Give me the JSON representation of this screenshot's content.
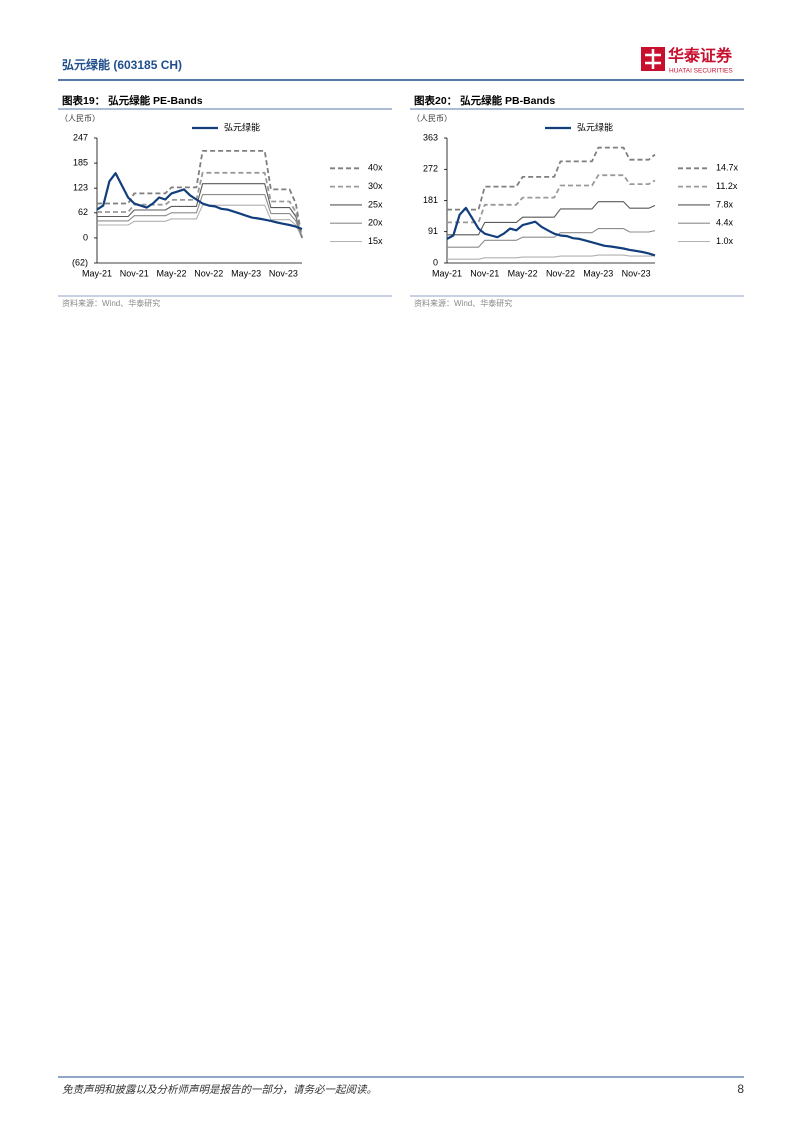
{
  "header": {
    "company": "弘元绿能 (603185 CH)",
    "logo_name": "华泰证券",
    "logo_sub": "HUATAI SECURITIES"
  },
  "chart_data": [
    {
      "type": "line",
      "title": "图表19： 弘元绿能 PE-Bands",
      "unit": "（人民币）",
      "source": "资料来源：Wind、华泰研究",
      "categories": [
        "May-21",
        null,
        null,
        null,
        null,
        null,
        "Nov-21",
        null,
        null,
        null,
        null,
        null,
        "May-22",
        null,
        null,
        null,
        null,
        null,
        "Nov-22",
        null,
        null,
        null,
        null,
        null,
        "May-23",
        null,
        null,
        null,
        null,
        null,
        "Nov-23",
        null,
        null,
        null
      ],
      "ylim": [
        -62,
        247
      ],
      "yticks": [
        {
          "value": -62,
          "label": "(62)"
        },
        0,
        62,
        123,
        185,
        247
      ],
      "series": [
        {
          "name": "弘元绿能",
          "color": "#123e7c",
          "style": "solid",
          "values": [
            70,
            80,
            140,
            160,
            130,
            100,
            85,
            80,
            75,
            85,
            100,
            95,
            110,
            115,
            120,
            105,
            95,
            85,
            80,
            78,
            72,
            70,
            65,
            60,
            55,
            50,
            48,
            45,
            42,
            38,
            35,
            32,
            28,
            22
          ]
        },
        {
          "name": "40x",
          "color": "#7f7f7f",
          "style": "dashed",
          "values": [
            85,
            85,
            85,
            85,
            85,
            85,
            110,
            110,
            110,
            110,
            110,
            110,
            125,
            125,
            125,
            125,
            125,
            215,
            215,
            215,
            215,
            215,
            215,
            215,
            215,
            215,
            215,
            215,
            120,
            120,
            120,
            120,
            85,
            0
          ]
        },
        {
          "name": "30x",
          "color": "#9a9a9a",
          "style": "dashed",
          "values": [
            64,
            64,
            64,
            64,
            64,
            64,
            82,
            82,
            82,
            82,
            82,
            82,
            94,
            94,
            94,
            94,
            94,
            161,
            161,
            161,
            161,
            161,
            161,
            161,
            161,
            161,
            161,
            161,
            90,
            90,
            90,
            90,
            64,
            0
          ]
        },
        {
          "name": "25x",
          "color": "#595959",
          "style": "solid",
          "values": [
            53,
            53,
            53,
            53,
            53,
            53,
            69,
            69,
            69,
            69,
            69,
            69,
            78,
            78,
            78,
            78,
            78,
            134,
            134,
            134,
            134,
            134,
            134,
            134,
            134,
            134,
            134,
            134,
            75,
            75,
            75,
            75,
            53,
            0
          ]
        },
        {
          "name": "20x",
          "color": "#8c8c8c",
          "style": "solid",
          "values": [
            42,
            42,
            42,
            42,
            42,
            42,
            55,
            55,
            55,
            55,
            55,
            55,
            62,
            62,
            62,
            62,
            62,
            107,
            107,
            107,
            107,
            107,
            107,
            107,
            107,
            107,
            107,
            107,
            60,
            60,
            60,
            60,
            42,
            0
          ]
        },
        {
          "name": "15x",
          "color": "#b0b0b0",
          "style": "solid",
          "values": [
            32,
            32,
            32,
            32,
            32,
            32,
            41,
            41,
            41,
            41,
            41,
            41,
            47,
            47,
            47,
            47,
            47,
            81,
            81,
            81,
            81,
            81,
            81,
            81,
            81,
            81,
            81,
            81,
            45,
            45,
            45,
            45,
            32,
            0
          ]
        }
      ]
    },
    {
      "type": "line",
      "title": "图表20： 弘元绿能 PB-Bands",
      "unit": "（人民币）",
      "source": "资料来源：Wind、华泰研究",
      "categories": [
        "May-21",
        null,
        null,
        null,
        null,
        null,
        "Nov-21",
        null,
        null,
        null,
        null,
        null,
        "May-22",
        null,
        null,
        null,
        null,
        null,
        "Nov-22",
        null,
        null,
        null,
        null,
        null,
        "May-23",
        null,
        null,
        null,
        null,
        null,
        "Nov-23",
        null,
        null,
        null
      ],
      "ylim": [
        0,
        363
      ],
      "yticks": [
        0,
        91,
        181,
        272,
        363
      ],
      "series": [
        {
          "name": "弘元绿能",
          "color": "#123e7c",
          "style": "solid",
          "values": [
            70,
            80,
            140,
            160,
            130,
            100,
            85,
            80,
            75,
            85,
            100,
            95,
            110,
            115,
            120,
            105,
            95,
            85,
            80,
            78,
            72,
            70,
            65,
            60,
            55,
            50,
            48,
            45,
            42,
            38,
            35,
            32,
            28,
            22
          ]
        },
        {
          "name": "14.7x",
          "color": "#7f7f7f",
          "style": "dashed",
          "values": [
            155,
            155,
            155,
            155,
            155,
            155,
            222,
            222,
            222,
            222,
            222,
            222,
            250,
            250,
            250,
            250,
            250,
            250,
            295,
            295,
            295,
            295,
            295,
            295,
            335,
            335,
            335,
            335,
            335,
            300,
            300,
            300,
            300,
            315
          ]
        },
        {
          "name": "11.2x",
          "color": "#9a9a9a",
          "style": "dashed",
          "values": [
            118,
            118,
            118,
            118,
            118,
            118,
            169,
            169,
            169,
            169,
            169,
            169,
            190,
            190,
            190,
            190,
            190,
            190,
            225,
            225,
            225,
            225,
            225,
            225,
            255,
            255,
            255,
            255,
            255,
            229,
            229,
            229,
            229,
            240
          ]
        },
        {
          "name": "7.8x",
          "color": "#595959",
          "style": "solid",
          "values": [
            82,
            82,
            82,
            82,
            82,
            82,
            118,
            118,
            118,
            118,
            118,
            118,
            133,
            133,
            133,
            133,
            133,
            133,
            157,
            157,
            157,
            157,
            157,
            157,
            178,
            178,
            178,
            178,
            178,
            159,
            159,
            159,
            159,
            167
          ]
        },
        {
          "name": "4.4x",
          "color": "#8c8c8c",
          "style": "solid",
          "values": [
            46,
            46,
            46,
            46,
            46,
            46,
            66,
            66,
            66,
            66,
            66,
            66,
            75,
            75,
            75,
            75,
            75,
            75,
            88,
            88,
            88,
            88,
            88,
            88,
            100,
            100,
            100,
            100,
            100,
            90,
            90,
            90,
            90,
            94
          ]
        },
        {
          "name": "1.0x",
          "color": "#b0b0b0",
          "style": "solid",
          "values": [
            11,
            11,
            11,
            11,
            11,
            11,
            15,
            15,
            15,
            15,
            15,
            15,
            17,
            17,
            17,
            17,
            17,
            17,
            20,
            20,
            20,
            20,
            20,
            20,
            23,
            23,
            23,
            23,
            23,
            20,
            20,
            20,
            20,
            21
          ]
        }
      ]
    }
  ],
  "footer": {
    "disclaimer": "免责声明和披露以及分析师声明是报告的一部分，请务必一起阅读。",
    "page": "8"
  }
}
